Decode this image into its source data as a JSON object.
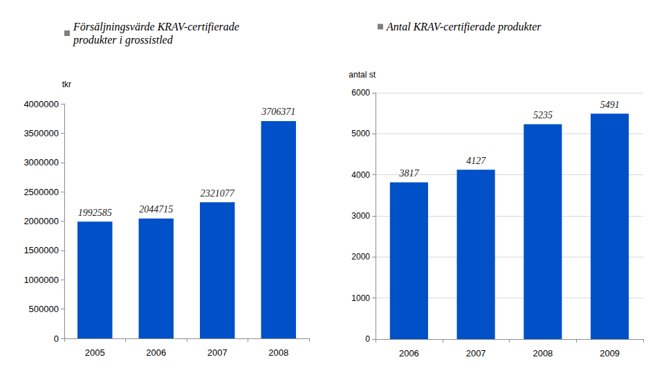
{
  "chart_data": [
    {
      "type": "bar",
      "series": [
        {
          "name": "Försäljningsvärde KRAV-certifierade produkter i grossistled",
          "color": "#0050c8",
          "values": [
            1992585,
            2044715,
            2321077,
            3706371
          ]
        }
      ],
      "categories": [
        "2005",
        "2006",
        "2007",
        "2008"
      ],
      "ylabel": "tkr",
      "ylim": [
        0,
        4000000
      ],
      "yticks": [
        0,
        500000,
        1000000,
        1500000,
        2000000,
        2500000,
        3000000,
        3500000,
        4000000
      ],
      "grid": false,
      "data_labels": true,
      "legend": "top-left"
    },
    {
      "type": "bar",
      "series": [
        {
          "name": "Antal KRAV-certifierade produkter",
          "color": "#0050c8",
          "values": [
            3817,
            4127,
            5235,
            5491
          ]
        }
      ],
      "categories": [
        "2006",
        "2007",
        "2008",
        "2009"
      ],
      "ylabel": "antal st",
      "ylim": [
        0,
        6000
      ],
      "yticks": [
        0,
        1000,
        2000,
        3000,
        4000,
        5000,
        6000
      ],
      "grid": true,
      "data_labels": true,
      "legend": "top-left"
    }
  ]
}
